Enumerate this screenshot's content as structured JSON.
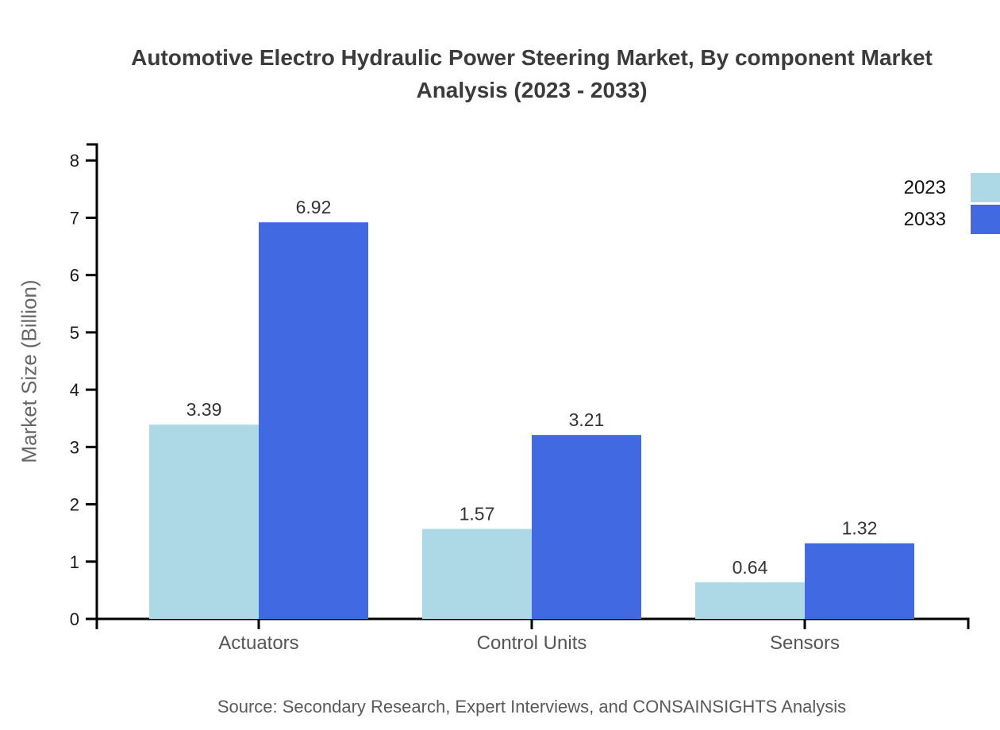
{
  "title": "Automotive Electro Hydraulic Power Steering Market, By component Market Analysis (2023 - 2033)",
  "source": "Source: Secondary Research, Expert Interviews, and CONSAINSIGHTS Analysis",
  "chart_data": {
    "type": "bar",
    "categories": [
      "Actuators",
      "Control Units",
      "Sensors"
    ],
    "series": [
      {
        "name": "2023",
        "color": "#ADD8E6",
        "values": [
          3.39,
          1.57,
          0.64
        ]
      },
      {
        "name": "2033",
        "color": "#4169E1",
        "values": [
          6.92,
          3.21,
          1.32
        ]
      }
    ],
    "title": "Automotive Electro Hydraulic Power Steering Market, By component Market Analysis (2023 - 2033)",
    "xlabel": "",
    "ylabel": "Market Size (Billion)",
    "ylim": [
      0,
      8.28
    ],
    "yticks": [
      0,
      1,
      2,
      3,
      4,
      5,
      6,
      7,
      8
    ],
    "grid": false,
    "legend_position": "top-right",
    "value_labels": true,
    "value_label_format": "2-decimals"
  },
  "colors": {
    "axis": "#000000",
    "tick_label": "#1a1a1a",
    "category_label": "#555555",
    "value_label": "#333333",
    "title_text": "#3b3b3b",
    "muted_text": "#666666",
    "background": "#ffffff"
  }
}
